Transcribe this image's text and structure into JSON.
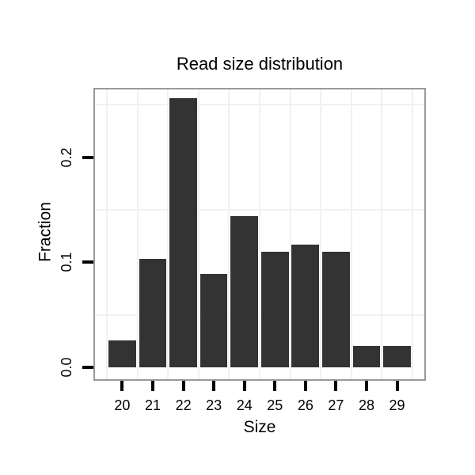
{
  "colors": {
    "bar": "#333333",
    "panel_border": "#999999",
    "grid": "#F1F1F1",
    "tick": "#000000",
    "text": "#000000",
    "background": "#FFFFFF"
  },
  "chart_data": {
    "type": "bar",
    "title": "Read size distribution",
    "xlabel": "Size",
    "ylabel": "Fraction",
    "categories": [
      20,
      21,
      22,
      23,
      24,
      25,
      26,
      27,
      28,
      29
    ],
    "x_tick_labels": [
      "20",
      "21",
      "22",
      "23",
      "24",
      "25",
      "26",
      "27",
      "28",
      "29"
    ],
    "values": [
      0.026,
      0.103,
      0.256,
      0.089,
      0.144,
      0.11,
      0.117,
      0.11,
      0.02,
      0.02
    ],
    "y_ticks": [
      0,
      0.1,
      0.2
    ],
    "y_tick_labels": [
      "0.0",
      "0.1",
      "0.2"
    ],
    "ylim": [
      -0.0128,
      0.266
    ],
    "xlim": [
      19.055,
      29.945
    ],
    "bar_width": 0.9,
    "minor_gridlines_x": [
      19.5,
      20.5,
      21.5,
      22.5,
      23.5,
      24.5,
      25.5,
      26.5,
      27.5,
      28.5,
      29.5
    ],
    "minor_gridlines_y": [
      0.05,
      0.15,
      0.25
    ],
    "grid": "minor-only",
    "legend": "none"
  }
}
